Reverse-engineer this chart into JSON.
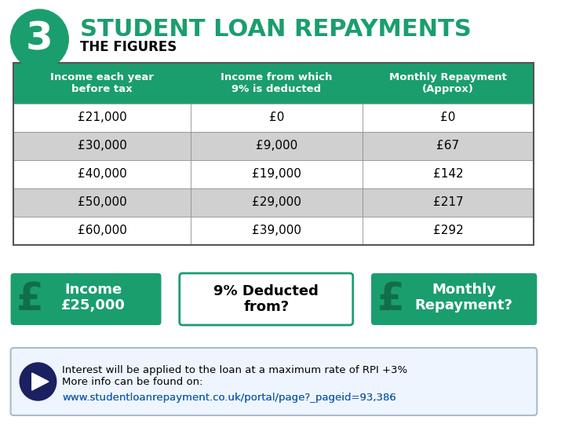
{
  "title": "STUDENT LOAN REPAYMENTS",
  "subtitle": "THE FIGURES",
  "number": "3",
  "green_color": "#1a9e6e",
  "dark_green": "#1a7a55",
  "light_gray": "#d0d0d0",
  "dark_navy": "#1a2060",
  "white": "#ffffff",
  "black": "#000000",
  "col_headers": [
    "Income each year\nbefore tax",
    "Income from which\n9% is deducted",
    "Monthly Repayment\n(Approx)"
  ],
  "rows": [
    [
      "£21,000",
      "£0",
      "£0"
    ],
    [
      "£30,000",
      "£9,000",
      "£67"
    ],
    [
      "£40,000",
      "£19,000",
      "£142"
    ],
    [
      "£50,000",
      "£29,000",
      "£217"
    ],
    [
      "£60,000",
      "£39,000",
      "£292"
    ]
  ],
  "row_shaded": [
    false,
    true,
    false,
    true,
    false
  ],
  "box1_text": "Income\n£25,000",
  "box2_text": "9% Deducted\nfrom?",
  "box3_text": "Monthly\nRepayment?",
  "footer_text": "Interest will be applied to the loan at a maximum rate of RPI +3%\nMore info can be found on:",
  "footer_url": "www.studentloanrepayment.co.uk/portal/page?_pageid=93,386"
}
